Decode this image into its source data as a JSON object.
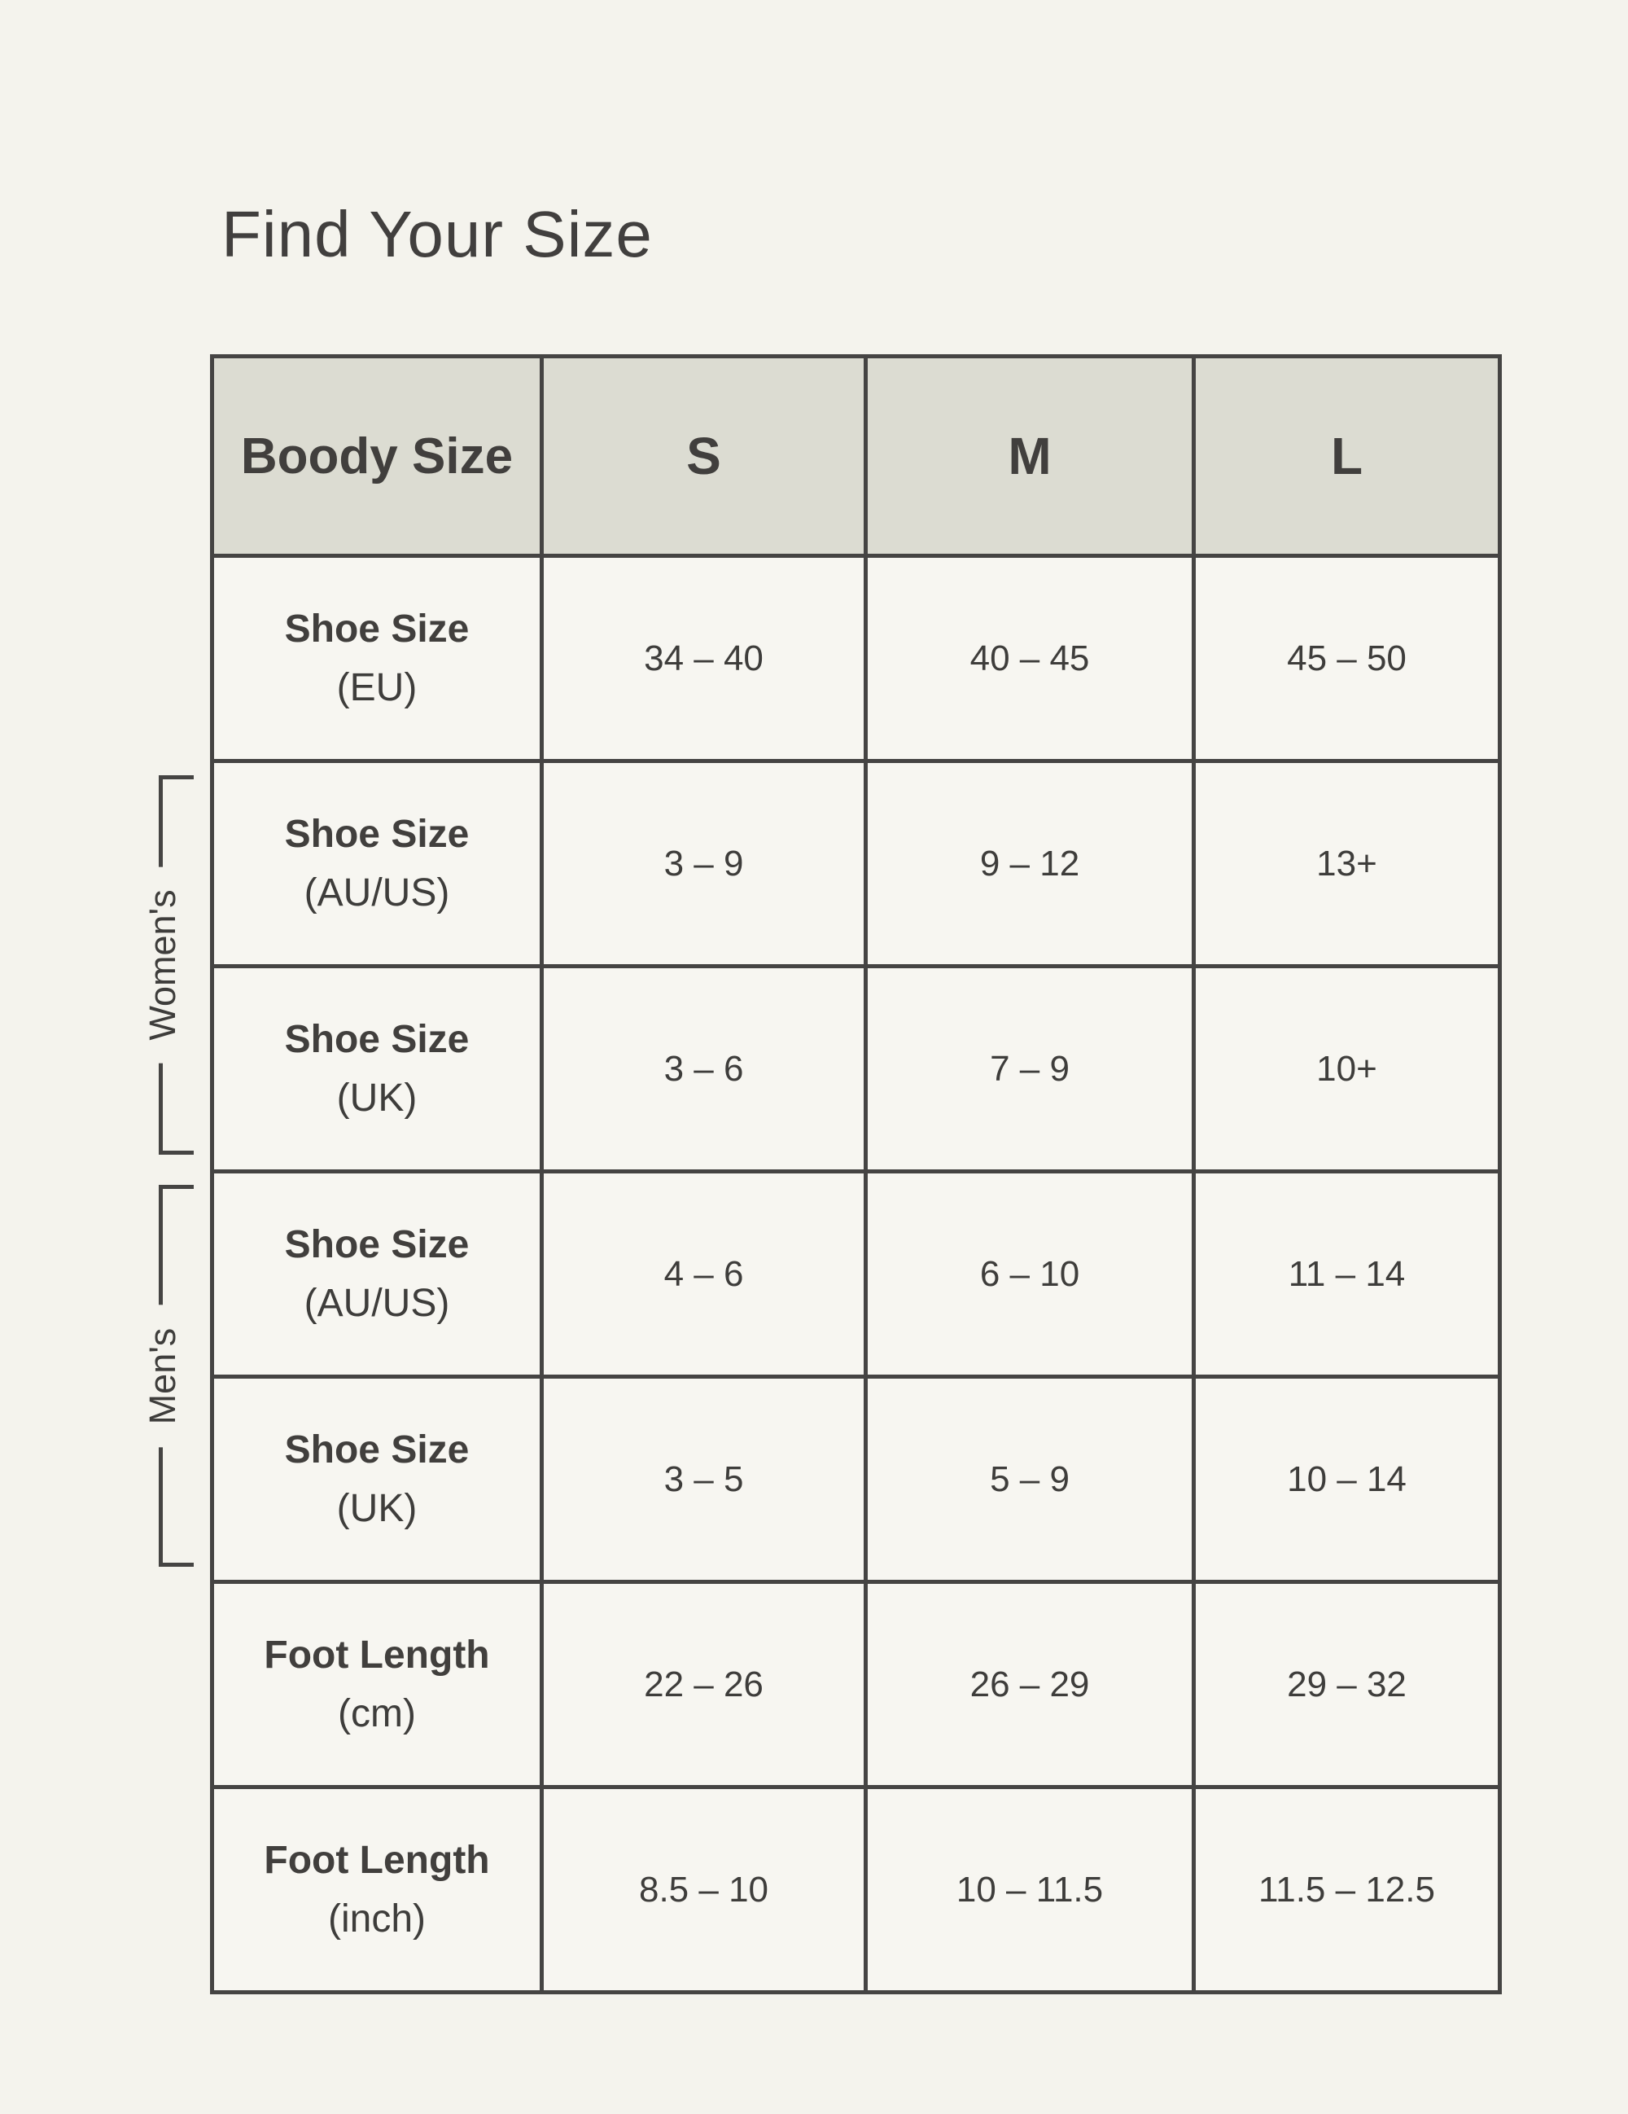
{
  "page": {
    "title": "Find Your Size"
  },
  "colors": {
    "page_background": "#f4f3ed",
    "cell_background": "#f7f6f1",
    "header_background": "#dcdcd2",
    "border": "#454443",
    "text": "#3e3d3b"
  },
  "table": {
    "header": {
      "label": "Boody Size",
      "sizes": [
        "S",
        "M",
        "L"
      ]
    },
    "rows": [
      {
        "label": "Shoe Size",
        "sublabel": "(EU)",
        "group": "",
        "values": [
          "34 – 40",
          "40 – 45",
          "45 – 50"
        ]
      },
      {
        "label": "Shoe Size",
        "sublabel": "(AU/US)",
        "group": "womens",
        "values": [
          "3 – 9",
          "9 – 12",
          "13+"
        ]
      },
      {
        "label": "Shoe Size",
        "sublabel": "(UK)",
        "group": "womens",
        "values": [
          "3 – 6",
          "7 – 9",
          "10+"
        ]
      },
      {
        "label": "Shoe Size",
        "sublabel": "(AU/US)",
        "group": "mens",
        "values": [
          "4 – 6",
          "6 – 10",
          "11 – 14"
        ]
      },
      {
        "label": "Shoe Size",
        "sublabel": "(UK)",
        "group": "mens",
        "values": [
          "3 – 5",
          "5 – 9",
          "10 – 14"
        ]
      },
      {
        "label": "Foot Length",
        "sublabel": "(cm)",
        "group": "",
        "values": [
          "22 – 26",
          "26 – 29",
          "29 – 32"
        ]
      },
      {
        "label": "Foot Length",
        "sublabel": "(inch)",
        "group": "",
        "values": [
          "8.5 – 10",
          "10 – 11.5",
          "11.5 – 12.5"
        ]
      }
    ],
    "group_labels": {
      "womens": "Women's",
      "mens": "Men's"
    }
  }
}
